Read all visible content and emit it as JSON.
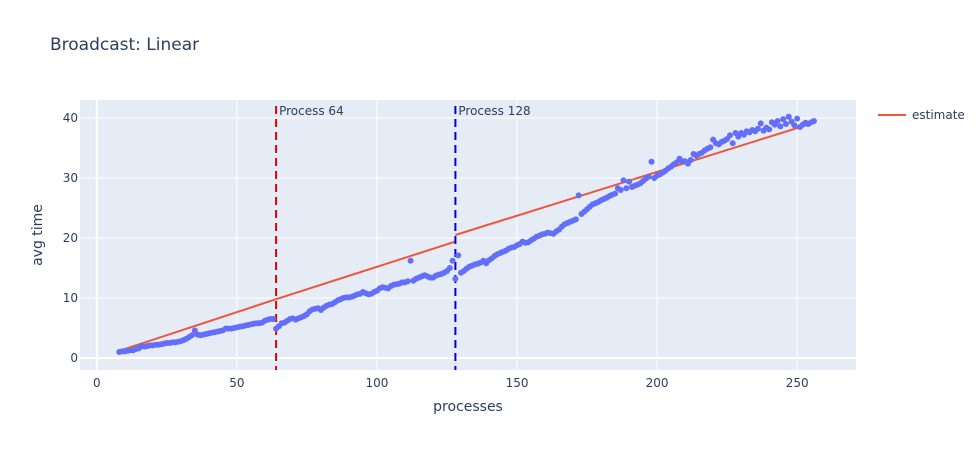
{
  "chart_data": {
    "type": "scatter",
    "title": "Broadcast: Linear",
    "xlabel": "processes",
    "ylabel": "avg time",
    "xlim": [
      -6,
      271
    ],
    "ylim": [
      -2,
      43
    ],
    "x_ticks": [
      0,
      50,
      100,
      150,
      200,
      250
    ],
    "y_ticks": [
      0,
      10,
      20,
      30,
      40
    ],
    "grid": true,
    "legend": {
      "placement": "top-right",
      "entries": [
        "estimate"
      ]
    },
    "colors": {
      "points": "#636efa",
      "estimate": "#ef553b",
      "vline_64": "#e00000",
      "vline_128": "#0000e0",
      "plot_bg": "#e5ecf6"
    },
    "annotations": [
      {
        "label": "Process 64",
        "x": 64,
        "color": "#e00000"
      },
      {
        "label": "Process 128",
        "x": 128,
        "color": "#0000e0"
      }
    ],
    "series": [
      {
        "name": "estimate",
        "mode": "line",
        "segments": [
          {
            "x": [
              8,
              64
            ],
            "y": [
              1.2,
              9.8
            ]
          },
          {
            "x": [
              64,
              128
            ],
            "y": [
              9.8,
              19.4
            ]
          },
          {
            "x": [
              128,
              256
            ],
            "y": [
              20.5,
              39.2
            ]
          }
        ]
      },
      {
        "mode": "markers",
        "points": [
          [
            8,
            1.0
          ],
          [
            9,
            1.1
          ],
          [
            10,
            1.1
          ],
          [
            11,
            1.2
          ],
          [
            12,
            1.3
          ],
          [
            13,
            1.3
          ],
          [
            14,
            1.5
          ],
          [
            15,
            1.6
          ],
          [
            16,
            2.0
          ],
          [
            17,
            1.9
          ],
          [
            18,
            2.0
          ],
          [
            19,
            2.1
          ],
          [
            20,
            2.1
          ],
          [
            21,
            2.2
          ],
          [
            22,
            2.2
          ],
          [
            23,
            2.3
          ],
          [
            24,
            2.4
          ],
          [
            25,
            2.5
          ],
          [
            26,
            2.5
          ],
          [
            27,
            2.6
          ],
          [
            28,
            2.6
          ],
          [
            29,
            2.7
          ],
          [
            30,
            2.8
          ],
          [
            31,
            3.0
          ],
          [
            32,
            3.2
          ],
          [
            33,
            3.5
          ],
          [
            34,
            3.8
          ],
          [
            35,
            4.6
          ],
          [
            36,
            3.9
          ],
          [
            37,
            3.8
          ],
          [
            38,
            3.9
          ],
          [
            39,
            4.0
          ],
          [
            40,
            4.1
          ],
          [
            41,
            4.2
          ],
          [
            42,
            4.3
          ],
          [
            43,
            4.4
          ],
          [
            44,
            4.5
          ],
          [
            45,
            4.6
          ],
          [
            46,
            4.9
          ],
          [
            47,
            4.9
          ],
          [
            48,
            4.9
          ],
          [
            49,
            5.0
          ],
          [
            50,
            5.1
          ],
          [
            51,
            5.2
          ],
          [
            52,
            5.3
          ],
          [
            53,
            5.4
          ],
          [
            54,
            5.5
          ],
          [
            55,
            5.6
          ],
          [
            56,
            5.7
          ],
          [
            57,
            5.8
          ],
          [
            58,
            5.8
          ],
          [
            59,
            5.9
          ],
          [
            60,
            6.2
          ],
          [
            61,
            6.4
          ],
          [
            62,
            6.5
          ],
          [
            63,
            6.5
          ],
          [
            64,
            4.9
          ],
          [
            65,
            5.3
          ],
          [
            66,
            5.8
          ],
          [
            67,
            5.9
          ],
          [
            68,
            6.2
          ],
          [
            69,
            6.5
          ],
          [
            70,
            6.6
          ],
          [
            71,
            6.4
          ],
          [
            72,
            6.6
          ],
          [
            73,
            6.8
          ],
          [
            74,
            7.0
          ],
          [
            75,
            7.3
          ],
          [
            76,
            7.8
          ],
          [
            77,
            8.1
          ],
          [
            78,
            8.2
          ],
          [
            79,
            8.3
          ],
          [
            80,
            8.0
          ],
          [
            81,
            8.4
          ],
          [
            82,
            8.7
          ],
          [
            83,
            8.9
          ],
          [
            84,
            9.0
          ],
          [
            85,
            9.3
          ],
          [
            86,
            9.6
          ],
          [
            87,
            9.8
          ],
          [
            88,
            10.0
          ],
          [
            89,
            10.1
          ],
          [
            90,
            10.1
          ],
          [
            91,
            10.2
          ],
          [
            92,
            10.4
          ],
          [
            93,
            10.6
          ],
          [
            94,
            10.7
          ],
          [
            95,
            11.0
          ],
          [
            96,
            10.8
          ],
          [
            97,
            10.6
          ],
          [
            98,
            10.7
          ],
          [
            99,
            11.0
          ],
          [
            100,
            11.2
          ],
          [
            101,
            11.6
          ],
          [
            102,
            11.8
          ],
          [
            103,
            11.7
          ],
          [
            104,
            11.6
          ],
          [
            105,
            12.0
          ],
          [
            106,
            12.2
          ],
          [
            107,
            12.3
          ],
          [
            108,
            12.4
          ],
          [
            109,
            12.6
          ],
          [
            110,
            12.6
          ],
          [
            111,
            12.8
          ],
          [
            112,
            16.2
          ],
          [
            113,
            12.9
          ],
          [
            114,
            13.2
          ],
          [
            115,
            13.4
          ],
          [
            116,
            13.6
          ],
          [
            117,
            13.8
          ],
          [
            118,
            13.6
          ],
          [
            119,
            13.4
          ],
          [
            120,
            13.4
          ],
          [
            121,
            13.7
          ],
          [
            122,
            13.9
          ],
          [
            123,
            14.0
          ],
          [
            124,
            14.2
          ],
          [
            125,
            14.5
          ],
          [
            126,
            15.0
          ],
          [
            127,
            16.2
          ],
          [
            128,
            13.2
          ],
          [
            129,
            17.1
          ],
          [
            130,
            14.2
          ],
          [
            131,
            14.5
          ],
          [
            132,
            14.9
          ],
          [
            133,
            15.2
          ],
          [
            134,
            15.4
          ],
          [
            135,
            15.6
          ],
          [
            136,
            15.7
          ],
          [
            137,
            15.9
          ],
          [
            138,
            16.2
          ],
          [
            139,
            15.8
          ],
          [
            140,
            16.3
          ],
          [
            141,
            16.6
          ],
          [
            142,
            17.0
          ],
          [
            143,
            17.3
          ],
          [
            144,
            17.5
          ],
          [
            145,
            17.7
          ],
          [
            146,
            17.9
          ],
          [
            147,
            18.2
          ],
          [
            148,
            18.4
          ],
          [
            149,
            18.5
          ],
          [
            150,
            18.8
          ],
          [
            151,
            19.0
          ],
          [
            152,
            19.4
          ],
          [
            153,
            19.2
          ],
          [
            154,
            19.3
          ],
          [
            155,
            19.6
          ],
          [
            156,
            19.9
          ],
          [
            157,
            20.2
          ],
          [
            158,
            20.4
          ],
          [
            159,
            20.6
          ],
          [
            160,
            20.7
          ],
          [
            161,
            20.9
          ],
          [
            162,
            20.8
          ],
          [
            163,
            20.7
          ],
          [
            164,
            21.1
          ],
          [
            165,
            21.4
          ],
          [
            166,
            21.9
          ],
          [
            167,
            22.3
          ],
          [
            168,
            22.5
          ],
          [
            169,
            22.7
          ],
          [
            170,
            22.9
          ],
          [
            171,
            23.1
          ],
          [
            172,
            27.1
          ],
          [
            173,
            24.0
          ],
          [
            174,
            24.4
          ],
          [
            175,
            24.8
          ],
          [
            176,
            25.2
          ],
          [
            177,
            25.6
          ],
          [
            178,
            25.8
          ],
          [
            179,
            26.0
          ],
          [
            180,
            26.3
          ],
          [
            181,
            26.5
          ],
          [
            182,
            26.7
          ],
          [
            183,
            27.0
          ],
          [
            184,
            27.2
          ],
          [
            185,
            27.4
          ],
          [
            186,
            28.3
          ],
          [
            187,
            28.0
          ],
          [
            188,
            29.6
          ],
          [
            189,
            28.3
          ],
          [
            190,
            29.4
          ],
          [
            191,
            28.5
          ],
          [
            192,
            28.7
          ],
          [
            193,
            28.9
          ],
          [
            194,
            29.1
          ],
          [
            195,
            29.5
          ],
          [
            196,
            29.9
          ],
          [
            197,
            30.2
          ],
          [
            198,
            32.7
          ],
          [
            199,
            30.0
          ],
          [
            200,
            30.4
          ],
          [
            201,
            30.6
          ],
          [
            202,
            30.9
          ],
          [
            203,
            31.2
          ],
          [
            204,
            31.6
          ],
          [
            205,
            31.9
          ],
          [
            206,
            32.3
          ],
          [
            207,
            32.6
          ],
          [
            208,
            33.2
          ],
          [
            209,
            32.8
          ],
          [
            210,
            32.8
          ],
          [
            211,
            32.4
          ],
          [
            212,
            33.0
          ],
          [
            213,
            34.0
          ],
          [
            214,
            33.7
          ],
          [
            215,
            34.0
          ],
          [
            216,
            34.2
          ],
          [
            217,
            34.6
          ],
          [
            218,
            34.9
          ],
          [
            219,
            35.1
          ],
          [
            220,
            36.4
          ],
          [
            221,
            35.8
          ],
          [
            222,
            35.6
          ],
          [
            223,
            36.0
          ],
          [
            224,
            36.2
          ],
          [
            225,
            36.5
          ],
          [
            226,
            37.1
          ],
          [
            227,
            35.8
          ],
          [
            228,
            37.5
          ],
          [
            229,
            36.9
          ],
          [
            230,
            37.5
          ],
          [
            231,
            37.2
          ],
          [
            232,
            37.8
          ],
          [
            233,
            37.6
          ],
          [
            234,
            38.0
          ],
          [
            235,
            37.8
          ],
          [
            236,
            38.2
          ],
          [
            237,
            39.1
          ],
          [
            238,
            37.9
          ],
          [
            239,
            38.4
          ],
          [
            240,
            38.1
          ],
          [
            241,
            39.3
          ],
          [
            242,
            38.9
          ],
          [
            243,
            39.5
          ],
          [
            244,
            38.6
          ],
          [
            245,
            39.8
          ],
          [
            246,
            39.0
          ],
          [
            247,
            40.2
          ],
          [
            248,
            39.4
          ],
          [
            249,
            38.8
          ],
          [
            250,
            39.9
          ],
          [
            251,
            38.5
          ],
          [
            252,
            38.9
          ],
          [
            253,
            39.2
          ],
          [
            254,
            39.0
          ],
          [
            255,
            39.3
          ],
          [
            256,
            39.5
          ]
        ]
      }
    ]
  }
}
